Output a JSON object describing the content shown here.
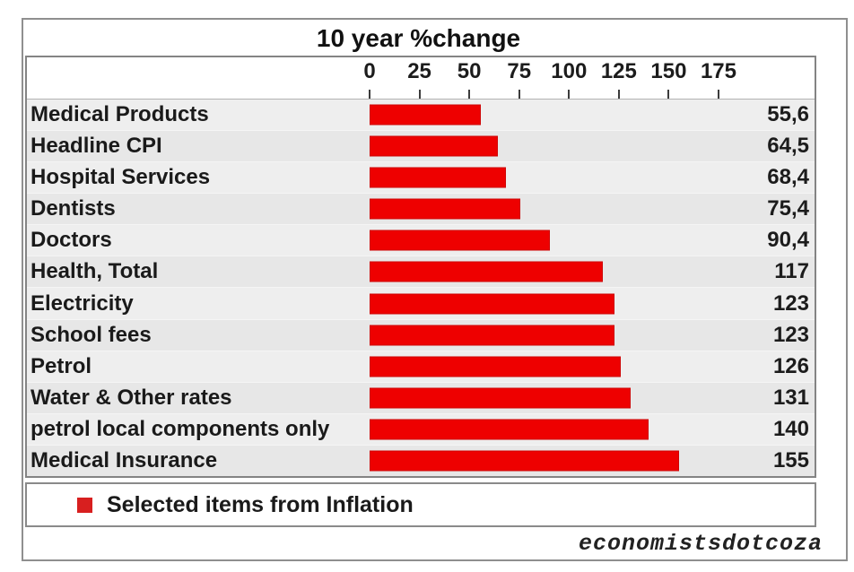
{
  "chart_data": {
    "type": "bar",
    "orientation": "horizontal",
    "title": "10 year %change",
    "xlabel": "",
    "ylabel": "",
    "xlim": [
      0,
      175
    ],
    "x_ticks": [
      0,
      25,
      50,
      75,
      100,
      125,
      150,
      175
    ],
    "grid": true,
    "bar_color": "#ee0000",
    "categories": [
      "Medical Products",
      "Headline CPI",
      "Hospital Services",
      "Dentists",
      "Doctors",
      "Health, Total",
      "Electricity",
      "School fees",
      "Petrol",
      "Water & Other rates",
      "petrol local components only",
      "Medical Insurance"
    ],
    "values": [
      55.6,
      64.5,
      68.4,
      75.4,
      90.4,
      117,
      123,
      123,
      126,
      131,
      140,
      155
    ],
    "value_labels": [
      "55,6",
      "64,5",
      "68,4",
      "75,4",
      "90,4",
      "117",
      "123",
      "123",
      "126",
      "131",
      "140",
      "155"
    ],
    "legend": {
      "position": "bottom",
      "label": "Selected items from Inflation",
      "swatch_color": "#d81f1f"
    }
  },
  "footer": {
    "credit": "economistsdotcoza"
  }
}
